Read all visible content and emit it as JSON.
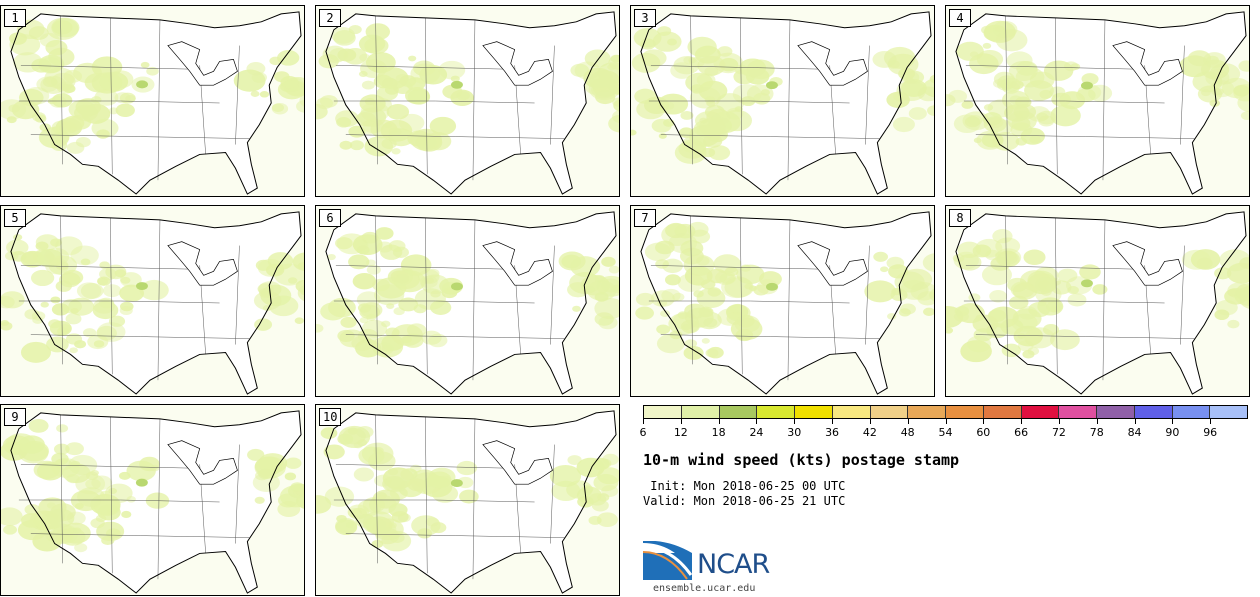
{
  "product": {
    "title": "10-m wind speed (kts) postage stamp",
    "init_line": " Init: Mon 2018-06-25 00 UTC",
    "valid_line": "Valid: Mon 2018-06-25 21 UTC",
    "url": "ensemble.ucar.edu",
    "logo_text": "NCAR"
  },
  "members": [
    "1",
    "2",
    "3",
    "4",
    "5",
    "6",
    "7",
    "8",
    "9",
    "10"
  ],
  "colorbar": {
    "ticks": [
      "6",
      "12",
      "18",
      "24",
      "30",
      "36",
      "42",
      "48",
      "54",
      "60",
      "66",
      "72",
      "78",
      "84",
      "90",
      "96"
    ],
    "colors": [
      "#f0f5c8",
      "#e0f0a8",
      "#a8c860",
      "#d8e830",
      "#f0e000",
      "#f8e880",
      "#f0d088",
      "#e8a858",
      "#e89040",
      "#e07840",
      "#e01040",
      "#e050a0",
      "#9060a8",
      "#6060e8",
      "#7890f0",
      "#a8c0f8"
    ]
  }
}
